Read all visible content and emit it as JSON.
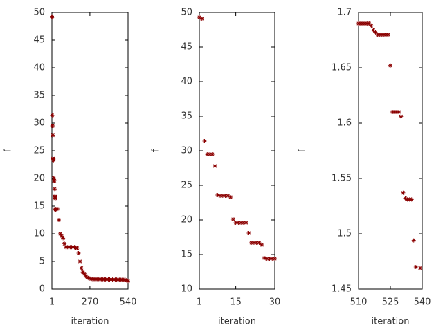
{
  "chart_data": [
    {
      "type": "scatter",
      "xlabel": "iteration",
      "ylabel": "f",
      "color": "#8b0000",
      "x": [
        1,
        2,
        3,
        4,
        5,
        6,
        7,
        8,
        9,
        10,
        11,
        12,
        13,
        14,
        15,
        16,
        17,
        18,
        19,
        20,
        21,
        22,
        23,
        24,
        25,
        26,
        27,
        28,
        29,
        30,
        40,
        50,
        60,
        70,
        80,
        90,
        100,
        110,
        120,
        130,
        140,
        150,
        160,
        170,
        180,
        190,
        200,
        210,
        220,
        230,
        240,
        250,
        260,
        270,
        280,
        290,
        300,
        310,
        320,
        330,
        340,
        350,
        360,
        370,
        380,
        390,
        400,
        410,
        420,
        430,
        440,
        450,
        460,
        470,
        480,
        490,
        500,
        510,
        520,
        530,
        540
      ],
      "values": [
        49.3,
        49.1,
        31.4,
        29.5,
        29.5,
        29.5,
        27.8,
        23.6,
        23.5,
        23.5,
        23.5,
        23.5,
        23.3,
        20.1,
        19.6,
        19.6,
        19.6,
        19.6,
        19.6,
        18.1,
        16.7,
        16.7,
        16.7,
        16.7,
        16.4,
        14.5,
        14.4,
        14.4,
        14.4,
        14.4,
        14.5,
        12.5,
        10,
        9.6,
        9.2,
        8.2,
        7.6,
        7.6,
        7.6,
        7.6,
        7.6,
        7.6,
        7.6,
        7.5,
        7.4,
        6.5,
        5,
        3.8,
        3.1,
        2.8,
        2.4,
        2.1,
        2,
        1.9,
        1.85,
        1.8,
        1.8,
        1.8,
        1.8,
        1.79,
        1.79,
        1.78,
        1.78,
        1.77,
        1.77,
        1.76,
        1.76,
        1.75,
        1.75,
        1.74,
        1.74,
        1.73,
        1.73,
        1.72,
        1.72,
        1.71,
        1.7,
        1.69,
        1.68,
        1.606,
        1.47
      ],
      "xlim": [
        1,
        540
      ],
      "xticks": [
        1,
        270,
        540
      ],
      "ylim": [
        0,
        50
      ],
      "yticks": [
        0,
        5,
        10,
        15,
        20,
        25,
        30,
        35,
        40,
        45,
        50
      ]
    },
    {
      "type": "scatter",
      "xlabel": "iteration",
      "ylabel": "f",
      "color": "#8b0000",
      "x": [
        1,
        2,
        3,
        4,
        5,
        6,
        7,
        8,
        9,
        10,
        11,
        12,
        13,
        14,
        15,
        16,
        17,
        18,
        19,
        20,
        21,
        22,
        23,
        24,
        25,
        26,
        27,
        28,
        29,
        30
      ],
      "values": [
        49.3,
        49.1,
        31.4,
        29.5,
        29.5,
        29.5,
        27.8,
        23.6,
        23.5,
        23.5,
        23.5,
        23.5,
        23.3,
        20.1,
        19.6,
        19.6,
        19.6,
        19.6,
        19.6,
        18.1,
        16.7,
        16.7,
        16.7,
        16.7,
        16.4,
        14.5,
        14.4,
        14.4,
        14.4,
        14.4
      ],
      "xlim": [
        1,
        30
      ],
      "xticks": [
        1,
        15,
        30
      ],
      "ylim": [
        10,
        50
      ],
      "yticks": [
        10,
        15,
        20,
        25,
        30,
        35,
        40,
        45,
        50
      ]
    },
    {
      "type": "scatter",
      "xlabel": "iteration",
      "ylabel": "f",
      "color": "#8b0000",
      "x": [
        510,
        511,
        512,
        513,
        514,
        515,
        516,
        517,
        518,
        519,
        520,
        521,
        522,
        523,
        524,
        525,
        526,
        527,
        528,
        529,
        530,
        531,
        532,
        533,
        534,
        535,
        536,
        537,
        539
      ],
      "values": [
        1.69,
        1.69,
        1.69,
        1.69,
        1.69,
        1.69,
        1.688,
        1.684,
        1.682,
        1.68,
        1.68,
        1.68,
        1.68,
        1.68,
        1.68,
        1.652,
        1.61,
        1.61,
        1.61,
        1.61,
        1.606,
        1.537,
        1.532,
        1.531,
        1.531,
        1.531,
        1.494,
        1.47,
        1.469
      ],
      "xlim": [
        510,
        540
      ],
      "xticks": [
        510,
        525,
        540
      ],
      "ylim": [
        1.45,
        1.7
      ],
      "yticks": [
        1.45,
        1.5,
        1.55,
        1.6,
        1.65,
        1.7
      ]
    }
  ]
}
